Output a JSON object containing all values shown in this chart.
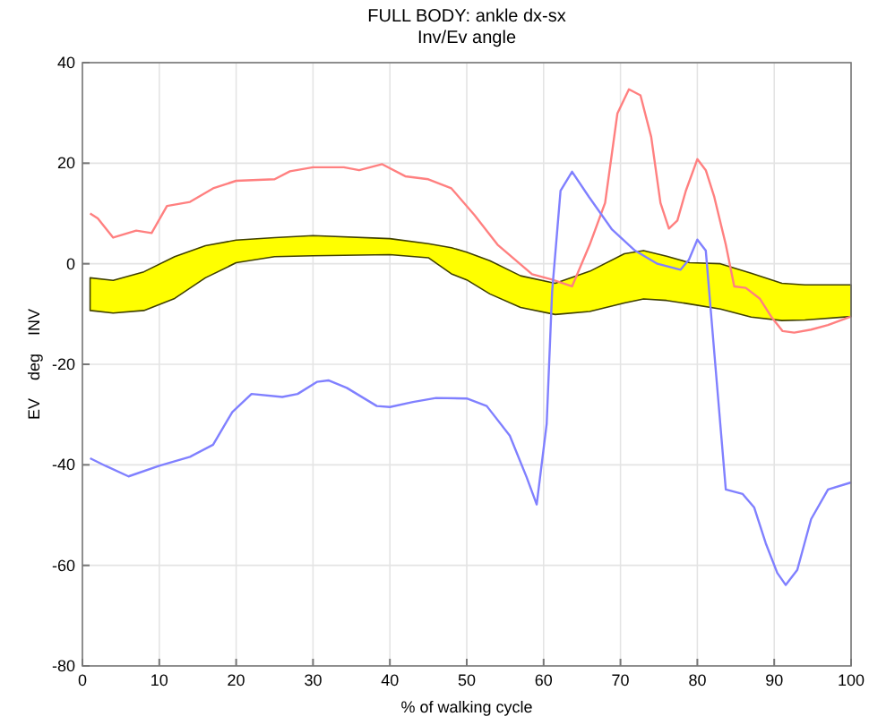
{
  "chart_data": {
    "type": "line",
    "title": "FULL BODY: ankle dx-sx",
    "subtitle": "Inv/Ev angle",
    "xlabel": "% of walking cycle",
    "ylabel": "EV    deg    INV",
    "xlim": [
      0,
      100
    ],
    "xticks": [
      0,
      10,
      20,
      30,
      40,
      50,
      60,
      70,
      80,
      90,
      100
    ],
    "ylim": [
      -80,
      40
    ],
    "yticks": [
      -80,
      -60,
      -40,
      -20,
      0,
      20,
      40
    ],
    "grid": true,
    "series": [
      {
        "type": "line",
        "color": "#ffff00",
        "x": [
          1,
          4,
          8,
          12,
          16,
          20,
          25,
          30,
          40,
          45,
          48,
          50,
          53,
          57,
          61.5,
          66,
          70.5,
          73,
          76,
          79,
          83,
          87,
          91,
          94,
          100
        ],
        "values": [
          null,
          null,
          null,
          null,
          null,
          null,
          null,
          null,
          null,
          null,
          null,
          null,
          null,
          null,
          null,
          null,
          null,
          null,
          null,
          null,
          null,
          null,
          null,
          null,
          null
        ],
        "upper": [
          -2.8,
          -3.3,
          -1.6,
          1.4,
          3.6,
          4.7,
          5.2,
          5.6,
          5.0,
          4.0,
          3.2,
          2.3,
          0.6,
          -2.4,
          -3.9,
          -1.5,
          2.0,
          2.6,
          1.5,
          0.2,
          0,
          -1.9,
          -3.9,
          -4.2,
          -4.2
        ],
        "lower": [
          -9.3,
          -9.8,
          -9.3,
          -6.9,
          -2.8,
          0.2,
          1.4,
          1.6,
          1.8,
          1.2,
          -2.0,
          -3.2,
          -6.0,
          -8.7,
          -10.1,
          -9.5,
          -7.8,
          -7.0,
          -7.3,
          -8.0,
          -9.0,
          -10.6,
          -11.3,
          -11.2,
          -10.5
        ]
      },
      {
        "type": "line",
        "color": "#ff8080",
        "x": [
          1,
          2,
          4,
          7,
          9,
          11,
          14,
          17,
          20,
          25,
          27,
          30,
          34,
          36,
          39,
          42,
          45,
          48,
          51,
          54,
          58.5,
          61,
          63.7,
          66,
          68,
          69.6,
          71.1,
          72.6,
          74,
          75.2,
          76.3,
          77.4,
          78.5,
          80,
          81.1,
          82.2,
          83.7,
          84.8,
          86.3,
          88.1,
          89.6,
          91.1,
          92.6,
          94.8,
          97,
          100
        ],
        "values": [
          10,
          9,
          5.2,
          6.6,
          6.1,
          11.5,
          12.3,
          15,
          16.5,
          16.8,
          18.4,
          19.2,
          19.2,
          18.6,
          19.8,
          17.4,
          16.8,
          15,
          9.7,
          3.8,
          -2.1,
          -3.1,
          -4.5,
          3.8,
          12.1,
          29.9,
          34.7,
          33.5,
          25.2,
          12.1,
          7.0,
          8.6,
          14.5,
          20.8,
          18.6,
          13.3,
          3.8,
          -4.5,
          -4.8,
          -6.9,
          -10.5,
          -13.4,
          -13.7,
          -13.1,
          -12.2,
          -10.5
        ]
      },
      {
        "type": "line",
        "color": "#8080ff",
        "x": [
          1,
          3,
          6,
          10,
          14,
          17,
          19.5,
          22,
          26,
          28,
          30.5,
          32,
          34.4,
          38.3,
          40,
          43,
          46,
          50,
          52.6,
          55.6,
          57.8,
          59.1,
          60.4,
          61.1,
          62.2,
          63.7,
          65.9,
          68.9,
          71.9,
          74.8,
          77.8,
          78.9,
          80,
          81.1,
          82.2,
          83.7,
          85.9,
          87.4,
          88.9,
          90.4,
          91.5,
          93,
          94.8,
          97,
          100
        ],
        "values": [
          -38.7,
          -40.2,
          -42.3,
          -40.2,
          -38.4,
          -36,
          -29.5,
          -25.9,
          -26.5,
          -25.9,
          -23.5,
          -23.2,
          -24.7,
          -28.3,
          -28.5,
          -27.5,
          -26.7,
          -26.8,
          -28.3,
          -34.2,
          -42.5,
          -47.9,
          -31.8,
          -5.7,
          14.5,
          18.3,
          13.3,
          6.8,
          2.6,
          0,
          -1.2,
          0.8,
          4.8,
          2.6,
          -17.6,
          -44.9,
          -45.8,
          -48.5,
          -55.6,
          -61.5,
          -63.9,
          -60.9,
          -50.8,
          -44.9,
          -43.5
        ]
      }
    ]
  }
}
